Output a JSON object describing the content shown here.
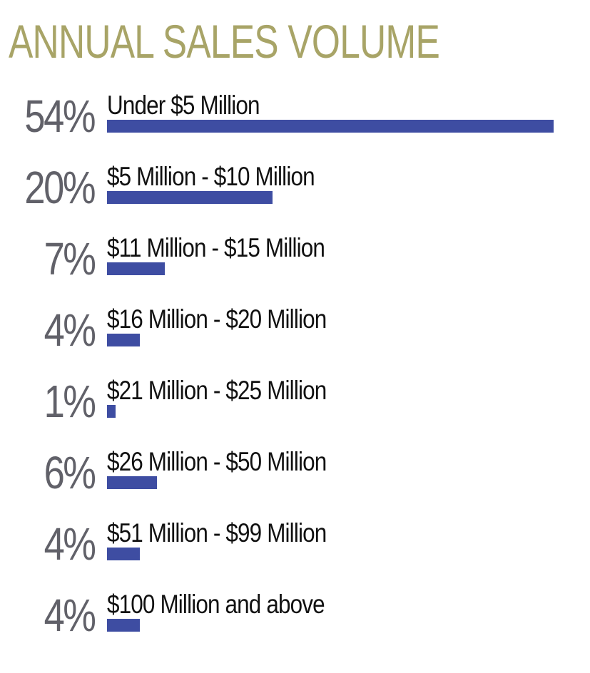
{
  "colors": {
    "title": "#a8a467",
    "percent": "#616169",
    "bar": "#3e4da2",
    "label": "#111111"
  },
  "chart_data": {
    "type": "bar",
    "orientation": "horizontal",
    "title": "ANNUAL SALES VOLUME",
    "xlabel": "",
    "ylabel": "",
    "xlim": [
      0,
      54
    ],
    "grid": false,
    "legend": "none",
    "categories": [
      "Under $5 Million",
      "$5 Million - $10 Million",
      "$11 Million - $15 Million",
      "$16 Million - $20 Million",
      "$21 Million - $25 Million",
      "$26 Million - $50 Million",
      "$51 Million - $99 Million",
      "$100 Million and above"
    ],
    "values": [
      54,
      20,
      7,
      4,
      1,
      6,
      4,
      4
    ],
    "value_labels": [
      "54%",
      "20%",
      "7%",
      "4%",
      "1%",
      "6%",
      "4%",
      "4%"
    ]
  }
}
